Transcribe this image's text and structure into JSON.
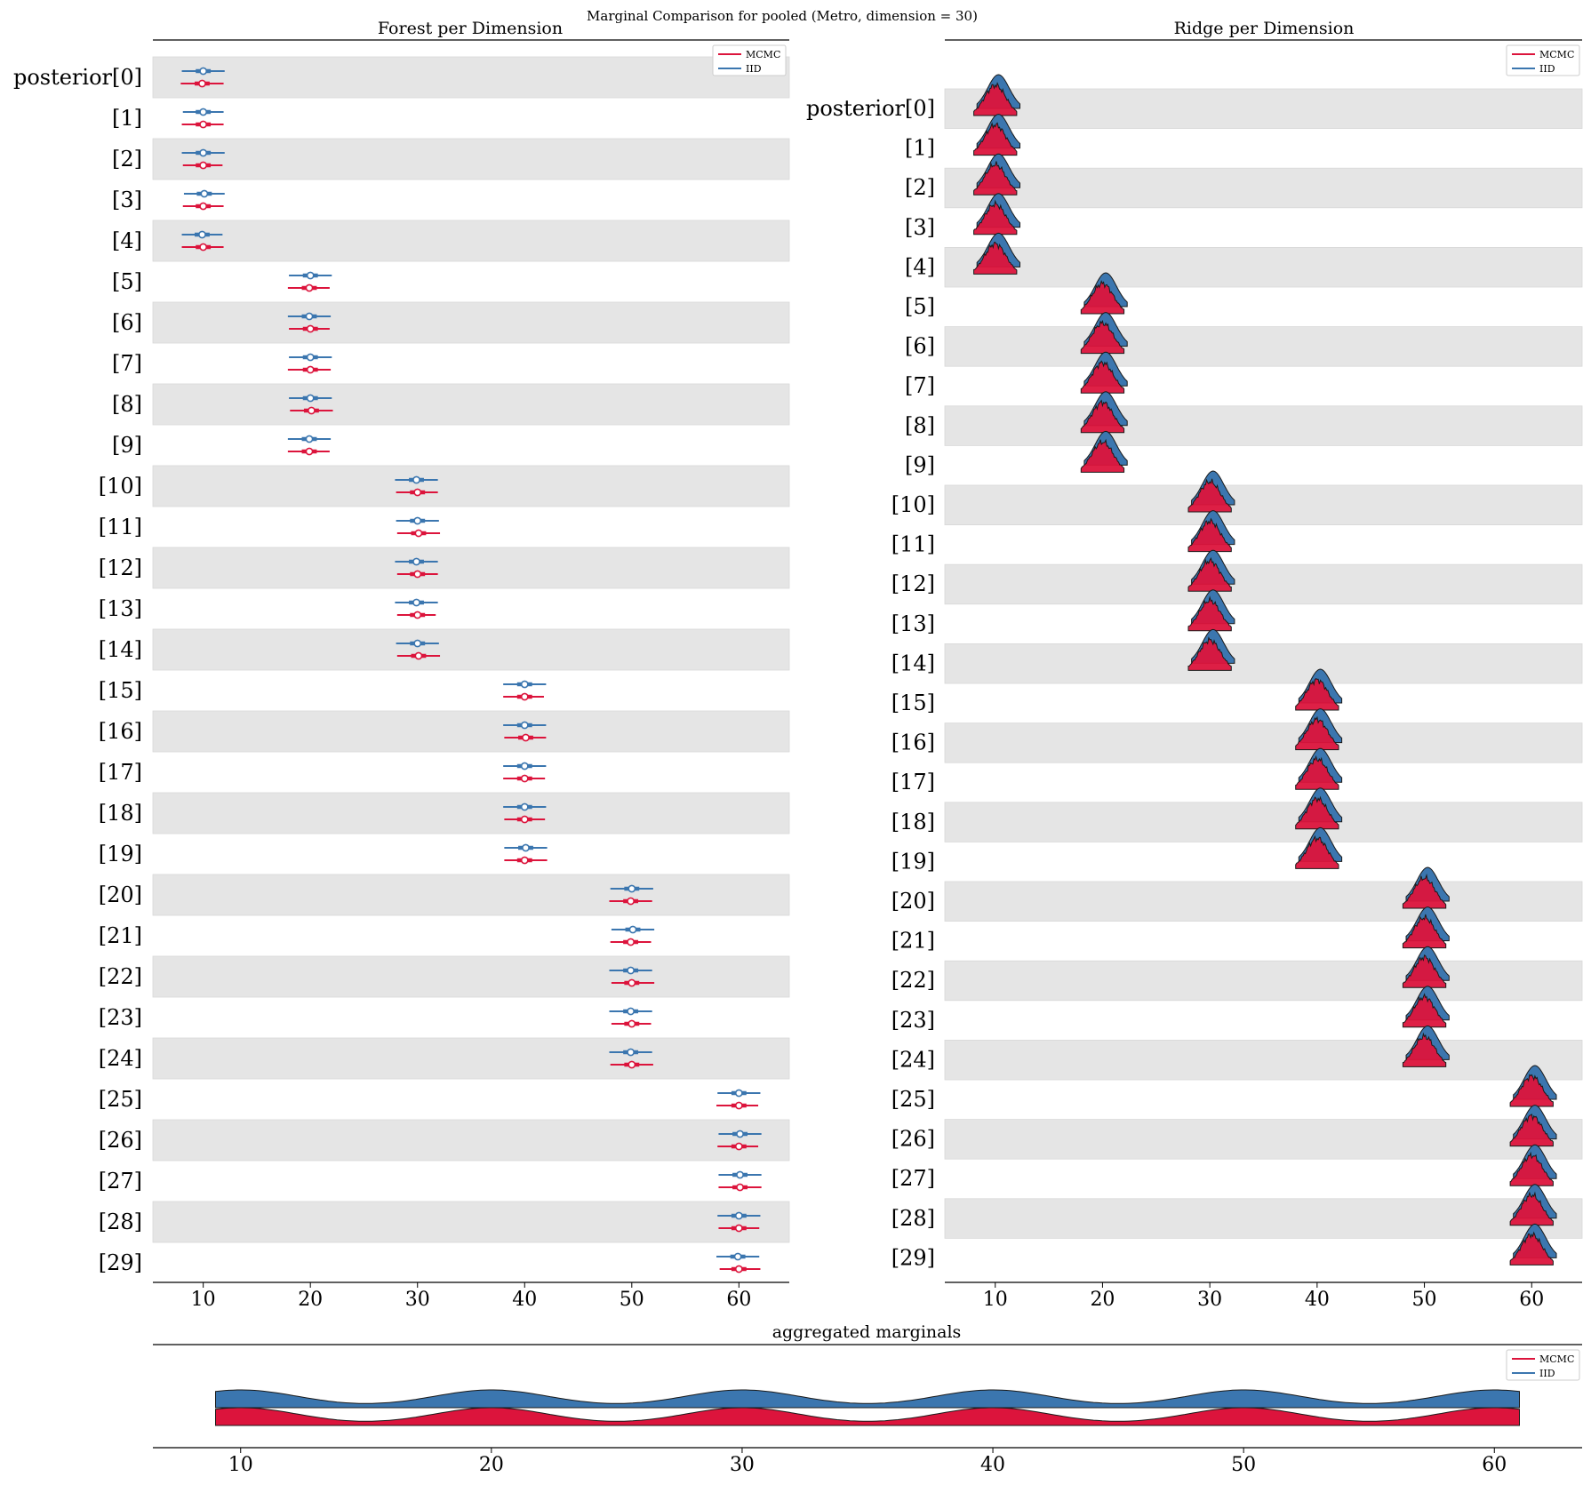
{
  "figure": {
    "suptitle": "Marginal Comparison for pooled (Metro, dimension = 30)"
  },
  "colors": {
    "mcmc": "#dc143c",
    "mcmc_ridge": "#dc143c",
    "iid": "#3b76af",
    "band": "#e5e5e5",
    "axis": "#000000"
  },
  "legend": {
    "entries": [
      {
        "label": "MCMC",
        "color": "#dc143c"
      },
      {
        "label": "IID",
        "color": "#3b76af"
      }
    ],
    "placement": "top-right"
  },
  "chart_data": [
    {
      "type": "forest",
      "title": "Forest per Dimension",
      "xlim": [
        5.3,
        64.7
      ],
      "xticks": [
        10,
        20,
        30,
        40,
        50,
        60
      ],
      "row_labels": [
        "posterior[0]",
        "[1]",
        "[2]",
        "[3]",
        "[4]",
        "[5]",
        "[6]",
        "[7]",
        "[8]",
        "[9]",
        "[10]",
        "[11]",
        "[12]",
        "[13]",
        "[14]",
        "[15]",
        "[16]",
        "[17]",
        "[18]",
        "[19]",
        "[20]",
        "[21]",
        "[22]",
        "[23]",
        "[24]",
        "[25]",
        "[26]",
        "[27]",
        "[28]",
        "[29]"
      ],
      "banded_rows": true,
      "series": [
        {
          "name": "IID",
          "means": [
            10.0,
            10.0,
            10.0,
            10.1,
            9.9,
            20.0,
            19.9,
            20.0,
            20.0,
            19.9,
            29.9,
            30.0,
            29.9,
            29.9,
            30.0,
            40.0,
            40.0,
            40.0,
            40.0,
            40.1,
            50.0,
            50.1,
            49.9,
            49.9,
            49.9,
            60.0,
            60.1,
            60.1,
            60.0,
            59.9
          ],
          "hdi94_low": [
            8.0,
            8.1,
            8.0,
            8.2,
            8.0,
            18.0,
            17.9,
            18.0,
            18.0,
            17.9,
            27.9,
            28.0,
            27.9,
            27.9,
            28.0,
            38.0,
            38.0,
            38.0,
            38.0,
            38.1,
            48.0,
            48.1,
            47.9,
            47.9,
            47.9,
            58.0,
            58.1,
            58.1,
            58.0,
            57.9
          ],
          "hdi94_high": [
            12.0,
            11.9,
            12.0,
            12.0,
            11.8,
            22.0,
            21.9,
            22.0,
            22.0,
            21.9,
            31.9,
            32.0,
            31.9,
            31.9,
            32.0,
            42.0,
            42.0,
            42.0,
            42.0,
            42.1,
            52.0,
            52.1,
            51.9,
            51.9,
            51.9,
            62.0,
            62.1,
            62.1,
            62.0,
            61.9
          ],
          "iqr_low": [
            9.3,
            9.3,
            9.3,
            9.4,
            9.2,
            19.3,
            19.2,
            19.3,
            19.3,
            19.2,
            29.2,
            29.3,
            29.2,
            29.2,
            29.3,
            39.3,
            39.3,
            39.3,
            39.3,
            39.4,
            49.3,
            49.4,
            49.2,
            49.2,
            49.2,
            59.3,
            59.4,
            59.4,
            59.3,
            59.2
          ],
          "iqr_high": [
            10.7,
            10.7,
            10.7,
            10.8,
            10.6,
            20.7,
            20.6,
            20.7,
            20.7,
            20.6,
            30.6,
            30.7,
            30.6,
            30.6,
            30.7,
            40.7,
            40.7,
            40.7,
            40.7,
            40.8,
            50.7,
            50.8,
            50.6,
            50.6,
            50.6,
            60.7,
            60.8,
            60.8,
            60.7,
            60.6
          ]
        },
        {
          "name": "MCMC",
          "means": [
            9.9,
            10.0,
            10.0,
            10.0,
            10.0,
            19.9,
            20.0,
            20.0,
            20.1,
            19.9,
            30.0,
            30.1,
            30.0,
            30.0,
            30.1,
            40.0,
            40.1,
            40.0,
            40.0,
            40.0,
            49.9,
            49.9,
            50.0,
            50.0,
            50.0,
            60.0,
            60.0,
            60.1,
            60.0,
            60.0
          ],
          "hdi94_low": [
            7.9,
            8.0,
            8.1,
            8.1,
            8.0,
            17.9,
            18.0,
            17.9,
            18.1,
            17.9,
            28.0,
            28.1,
            28.1,
            28.1,
            28.1,
            38.0,
            38.1,
            38.0,
            38.1,
            38.1,
            47.9,
            48.0,
            48.1,
            48.1,
            48.0,
            57.9,
            58.0,
            58.1,
            58.1,
            58.2
          ],
          "hdi94_high": [
            11.9,
            11.9,
            11.8,
            11.9,
            11.9,
            21.8,
            21.8,
            21.9,
            22.1,
            21.8,
            31.9,
            32.1,
            31.9,
            31.7,
            32.1,
            41.8,
            42.0,
            41.9,
            41.9,
            42.1,
            51.9,
            51.8,
            52.1,
            51.8,
            52.0,
            61.8,
            61.8,
            62.1,
            61.9,
            62.0
          ],
          "iqr_low": [
            9.2,
            9.3,
            9.3,
            9.3,
            9.3,
            19.2,
            19.3,
            19.3,
            19.4,
            19.2,
            29.3,
            29.4,
            29.3,
            29.3,
            29.4,
            39.3,
            39.4,
            39.3,
            39.3,
            39.3,
            49.2,
            49.2,
            49.3,
            49.3,
            49.3,
            59.3,
            59.3,
            59.4,
            59.3,
            59.3
          ],
          "iqr_high": [
            10.6,
            10.7,
            10.7,
            10.7,
            10.7,
            20.6,
            20.7,
            20.7,
            20.8,
            20.6,
            30.7,
            30.8,
            30.7,
            30.7,
            30.8,
            40.7,
            40.8,
            40.7,
            40.7,
            40.7,
            50.6,
            50.6,
            50.7,
            50.7,
            50.7,
            60.7,
            60.7,
            60.8,
            60.7,
            60.7
          ]
        }
      ]
    },
    {
      "type": "ridge",
      "title": "Ridge per Dimension",
      "xlim": [
        5.3,
        64.7
      ],
      "xticks": [
        10,
        20,
        30,
        40,
        50,
        60
      ],
      "row_labels": [
        "posterior[0]",
        "[1]",
        "[2]",
        "[3]",
        "[4]",
        "[5]",
        "[6]",
        "[7]",
        "[8]",
        "[9]",
        "[10]",
        "[11]",
        "[12]",
        "[13]",
        "[14]",
        "[15]",
        "[16]",
        "[17]",
        "[18]",
        "[19]",
        "[20]",
        "[21]",
        "[22]",
        "[23]",
        "[24]",
        "[25]",
        "[26]",
        "[27]",
        "[28]",
        "[29]"
      ],
      "banded_rows": true,
      "series": [
        {
          "name": "IID",
          "centers": [
            10,
            10,
            10,
            10,
            10,
            20,
            20,
            20,
            20,
            20,
            30,
            30,
            30,
            30,
            30,
            40,
            40,
            40,
            40,
            40,
            50,
            50,
            50,
            50,
            50,
            60,
            60,
            60,
            60,
            60
          ],
          "sd": 1
        },
        {
          "name": "MCMC",
          "centers": [
            10,
            10,
            10,
            10,
            10,
            20,
            20,
            20,
            20,
            20,
            30,
            30,
            30,
            30,
            30,
            40,
            40,
            40,
            40,
            40,
            50,
            50,
            50,
            50,
            50,
            60,
            60,
            60,
            60,
            60
          ],
          "sd": 1
        }
      ]
    },
    {
      "type": "area",
      "title": "aggregated marginals",
      "xlim": [
        6.5,
        63.5
      ],
      "xticks": [
        10,
        20,
        30,
        40,
        50,
        60
      ],
      "x_range": [
        9,
        61
      ],
      "mixture_components": [
        10,
        20,
        30,
        40,
        50,
        60
      ],
      "component_sd": 2.3,
      "series": [
        {
          "name": "IID"
        },
        {
          "name": "MCMC"
        }
      ]
    }
  ]
}
